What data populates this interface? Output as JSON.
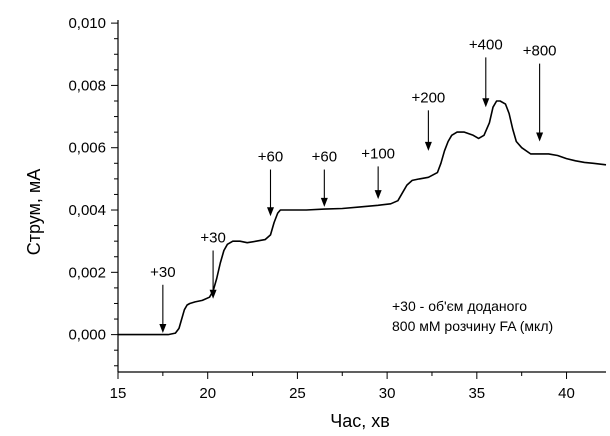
{
  "chart_data": {
    "type": "line",
    "xlabel": "Час, хв",
    "ylabel": "Струм, мА",
    "xlim": [
      15,
      42.2
    ],
    "ylim": [
      -0.0012,
      0.0101
    ],
    "xticks": [
      {
        "value": 15,
        "label": "15"
      },
      {
        "value": 20,
        "label": "20"
      },
      {
        "value": 25,
        "label": "25"
      },
      {
        "value": 30,
        "label": "30"
      },
      {
        "value": 35,
        "label": "35"
      },
      {
        "value": 40,
        "label": "40"
      }
    ],
    "yticks": [
      {
        "value": 0.0,
        "label": "0,000"
      },
      {
        "value": 0.002,
        "label": "0,002"
      },
      {
        "value": 0.004,
        "label": "0,004"
      },
      {
        "value": 0.006,
        "label": "0,006"
      },
      {
        "value": 0.008,
        "label": "0,008"
      },
      {
        "value": 0.01,
        "label": "0,010"
      }
    ],
    "series": [
      {
        "color": "#000000",
        "x": [
          15.0,
          16.0,
          17.0,
          17.8,
          18.2,
          18.4,
          18.55,
          18.7,
          18.85,
          19.0,
          19.3,
          19.7,
          20.1,
          20.3,
          20.5,
          20.7,
          20.9,
          21.1,
          21.4,
          21.8,
          22.2,
          22.7,
          23.2,
          23.5,
          23.7,
          23.9,
          24.05,
          24.3,
          24.8,
          25.5,
          26.5,
          27.5,
          28.5,
          29.5,
          30.2,
          30.6,
          30.9,
          31.1,
          31.4,
          31.8,
          32.3,
          32.8,
          33.0,
          33.2,
          33.4,
          33.6,
          33.9,
          34.3,
          34.8,
          35.1,
          35.4,
          35.7,
          35.9,
          36.1,
          36.3,
          36.6,
          36.8,
          37.0,
          37.2,
          37.5,
          38.0,
          38.5,
          39.0,
          39.5,
          40.0,
          40.5,
          41.0,
          41.5,
          42.2
        ],
        "y": [
          0.0,
          0.0,
          0.0,
          0.0,
          5e-05,
          0.0002,
          0.0005,
          0.0008,
          0.00095,
          0.001,
          0.00105,
          0.0011,
          0.0012,
          0.0014,
          0.0018,
          0.0023,
          0.0027,
          0.0029,
          0.003,
          0.003,
          0.00295,
          0.003,
          0.00305,
          0.0032,
          0.0036,
          0.0039,
          0.004,
          0.004,
          0.004,
          0.004,
          0.00403,
          0.00405,
          0.0041,
          0.00415,
          0.0042,
          0.0043,
          0.0046,
          0.0048,
          0.00495,
          0.005,
          0.00505,
          0.0052,
          0.0055,
          0.0059,
          0.0062,
          0.0064,
          0.0065,
          0.0065,
          0.0064,
          0.0063,
          0.0064,
          0.0068,
          0.0073,
          0.0075,
          0.0075,
          0.0074,
          0.0071,
          0.0066,
          0.0062,
          0.006,
          0.0058,
          0.0058,
          0.0058,
          0.00575,
          0.00565,
          0.00558,
          0.00553,
          0.0055,
          0.00545
        ]
      }
    ],
    "annotations": [
      {
        "label": "+30",
        "x": 17.5,
        "arrow_top": 0.0016,
        "arrow_bottom": 5e-05
      },
      {
        "label": "+30",
        "x": 20.3,
        "arrow_top": 0.0027,
        "arrow_bottom": 0.00115
      },
      {
        "label": "+60",
        "x": 23.5,
        "arrow_top": 0.0053,
        "arrow_bottom": 0.0038
      },
      {
        "label": "+60",
        "x": 26.5,
        "arrow_top": 0.0053,
        "arrow_bottom": 0.0041
      },
      {
        "label": "+100",
        "x": 29.5,
        "arrow_top": 0.0054,
        "arrow_bottom": 0.00435
      },
      {
        "label": "+200",
        "x": 32.3,
        "arrow_top": 0.0072,
        "arrow_bottom": 0.0059
      },
      {
        "label": "+400",
        "x": 35.5,
        "arrow_top": 0.0089,
        "arrow_bottom": 0.0073
      },
      {
        "label": "+800",
        "x": 38.5,
        "arrow_top": 0.0087,
        "arrow_bottom": 0.0062
      }
    ],
    "note_lines": [
      "+30 - об'єм доданого",
      "800 мМ розчину FA (мкл)"
    ]
  }
}
